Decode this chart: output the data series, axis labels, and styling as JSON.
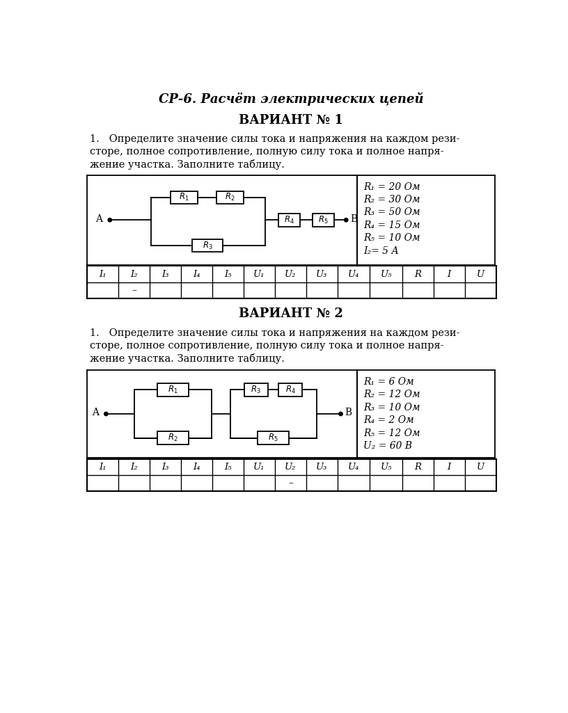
{
  "title": "СР-6. Расчёт электрических цепей",
  "variant1": {
    "header": "ВАРИАНТ № 1",
    "task_line1": "1.   Определите значение силы тока и напряжения на каждом рези-",
    "task_line2": "сторе, полное сопротивление, полную силу тока и полное напря-",
    "task_line3": "жение участка. Заполните таблицу.",
    "params": [
      "R₁ = 20 Ом",
      "R₂ = 30 Ом",
      "R₃ = 50 Ом",
      "R₄ = 15 Ом",
      "R₅ = 10 Ом",
      "I₂= 5 А"
    ],
    "table_headers": [
      "I₁",
      "I₂",
      "I₃",
      "I₄",
      "I₅",
      "U₁",
      "U₂",
      "U₃",
      "U₄",
      "U₅",
      "R",
      "I",
      "U"
    ],
    "dash_col": 1
  },
  "variant2": {
    "header": "ВАРИАНТ № 2",
    "task_line1": "1.   Определите значение силы тока и напряжения на каждом рези-",
    "task_line2": "сторе, полное сопротивление, полную силу тока и полное напря-",
    "task_line3": "жение участка. Заполните таблицу.",
    "params": [
      "R₁ = 6 Ом",
      "R₂ = 12 Ом",
      "R₃ = 10 Ом",
      "R₄ = 2 Ом",
      "R₅ = 12 Ом",
      "U₂ = 60 В"
    ],
    "table_headers": [
      "I₁",
      "I₂",
      "I₃",
      "I₄",
      "I₅",
      "U₁",
      "U₂",
      "U₃",
      "U₄",
      "U₅",
      "R",
      "I",
      "U"
    ],
    "dash_col": 6
  },
  "bg_color": "#ffffff"
}
